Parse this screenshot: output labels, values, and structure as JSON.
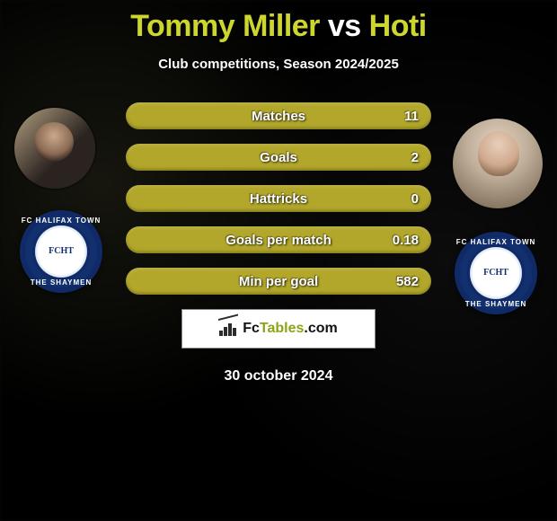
{
  "title": {
    "left": "Tommy Miller",
    "sep": "vs",
    "right": "Hoti",
    "color_accent": "#cdd62e"
  },
  "subtitle": "Club competitions, Season 2024/2025",
  "stats": {
    "bar_color": "#b2a72b",
    "text_color": "#ffffff",
    "rows": [
      {
        "label": "Matches",
        "value": "11"
      },
      {
        "label": "Goals",
        "value": "2"
      },
      {
        "label": "Hattricks",
        "value": "0"
      },
      {
        "label": "Goals per match",
        "value": "0.18"
      },
      {
        "label": "Min per goal",
        "value": "582"
      }
    ]
  },
  "club": {
    "name_top": "FC HALIFAX TOWN",
    "name_bottom": "THE SHAYMEN",
    "mono": "FCHT",
    "ring_color": "#12306d"
  },
  "brand": {
    "text_a": "Fc",
    "text_b": "Tables",
    "text_c": ".com"
  },
  "date": "30 october 2024",
  "colors": {
    "background": "#000000"
  }
}
